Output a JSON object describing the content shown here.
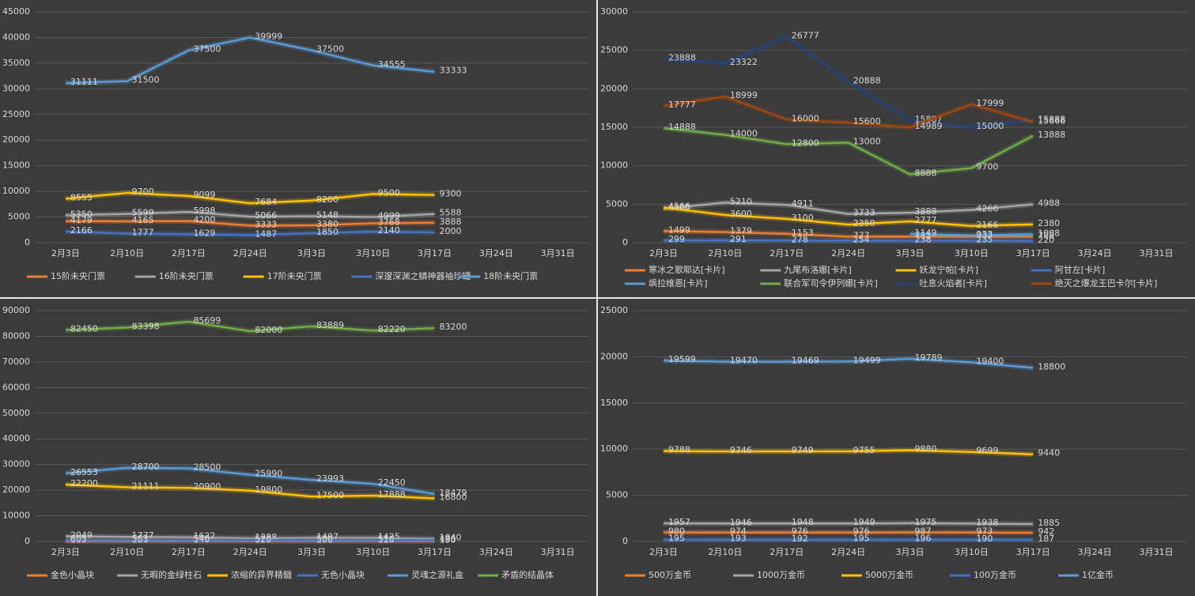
{
  "chart_data": [
    {
      "type": "line",
      "categories": [
        "2月3日",
        "2月10日",
        "2月17日",
        "2月24日",
        "3月3日",
        "3月10日",
        "3月17日",
        "3月24日",
        "3月31日"
      ],
      "ylim": [
        0,
        45000
      ],
      "yticks": [
        0,
        5000,
        10000,
        15000,
        20000,
        25000,
        30000,
        35000,
        40000,
        45000
      ],
      "grid": true,
      "legend": "bottom",
      "series": [
        {
          "name": "15阶未央门票",
          "color": "#ed7d31",
          "values": [
            4179,
            4165,
            4200,
            3333,
            3380,
            3768,
            3888,
            null,
            null
          ]
        },
        {
          "name": "16阶未央门票",
          "color": "#a5a5a5",
          "values": [
            5350,
            5599,
            5998,
            5066,
            5148,
            4999,
            5588,
            null,
            null
          ]
        },
        {
          "name": "17阶未央门票",
          "color": "#ffc000",
          "values": [
            8555,
            9700,
            9099,
            7684,
            8200,
            9500,
            9300,
            null,
            null
          ]
        },
        {
          "name": "深邃深渊之鳞神器袖珍罐",
          "color": "#4472c4",
          "values": [
            2166,
            1777,
            1629,
            1487,
            1850,
            2140,
            2000,
            null,
            null
          ]
        },
        {
          "name": "18阶未央门票",
          "color": "#5b9bd5",
          "values": [
            31111,
            31500,
            37500,
            39999,
            37500,
            34555,
            33333,
            null,
            null
          ]
        }
      ]
    },
    {
      "type": "line",
      "categories": [
        "2月3日",
        "2月10日",
        "2月17日",
        "2月24日",
        "3月3日",
        "3月10日",
        "3月17日",
        "3月24日",
        "3月31日"
      ],
      "ylim": [
        0,
        30000
      ],
      "yticks": [
        0,
        5000,
        10000,
        15000,
        20000,
        25000,
        30000
      ],
      "grid": true,
      "legend": "bottom",
      "series": [
        {
          "name": "寒冰之歌耶达[卡片]",
          "color": "#ed7d31",
          "values": [
            1499,
            1379,
            1153,
            777,
            781,
            777,
            788,
            null,
            null
          ]
        },
        {
          "name": "九尾布洛娜[卡片]",
          "color": "#a5a5a5",
          "values": [
            4400,
            5210,
            4911,
            3733,
            3888,
            4266,
            4988,
            null,
            null
          ]
        },
        {
          "name": "妖龙宁帕[卡片]",
          "color": "#ffc000",
          "values": [
            4566,
            3600,
            3100,
            2350,
            2777,
            2166,
            2380,
            null,
            null
          ]
        },
        {
          "name": "阿甘左[卡片]",
          "color": "#4472c4",
          "values": [
            299,
            291,
            278,
            254,
            238,
            235,
            220,
            null,
            null
          ]
        },
        {
          "name": "飒拉维恩[卡片]",
          "color": "#5b9bd5",
          "values": [
            null,
            null,
            null,
            null,
            1149,
            933,
            1088,
            null,
            null
          ]
        },
        {
          "name": "联合军司令伊列娜[卡片]",
          "color": "#70ad47",
          "values": [
            14888,
            14000,
            12800,
            13000,
            8888,
            9700,
            13888,
            null,
            null
          ]
        },
        {
          "name": "吐息火焰者[卡片]",
          "color": "#264478",
          "values": [
            23888,
            23322,
            26777,
            20888,
            15887,
            15000,
            15888,
            null,
            null
          ]
        },
        {
          "name": "绝灭之爆龙王巴卡尔[卡片]",
          "color": "#9e480e",
          "values": [
            17777,
            18999,
            16000,
            15600,
            14989,
            17999,
            15666,
            null,
            null
          ]
        }
      ]
    },
    {
      "type": "line",
      "categories": [
        "2月3日",
        "2月10日",
        "2月17日",
        "2月24日",
        "3月3日",
        "3月10日",
        "3月17日",
        "3月24日",
        "3月31日"
      ],
      "ylim": [
        0,
        90000
      ],
      "yticks": [
        0,
        10000,
        20000,
        30000,
        40000,
        50000,
        60000,
        70000,
        80000,
        90000
      ],
      "grid": true,
      "legend": "bottom",
      "series": [
        {
          "name": "金色小晶块",
          "color": "#ed7d31",
          "values": [
            115,
            126,
            140,
            133,
            130,
            128,
            130,
            null,
            null
          ]
        },
        {
          "name": "无暇的金绿柱石",
          "color": "#a5a5a5",
          "values": [
            2049,
            1777,
            1622,
            1288,
            1407,
            1425,
            1040,
            null,
            null
          ]
        },
        {
          "name": "浓缩的异界精髓",
          "color": "#ffc000",
          "values": [
            22200,
            21111,
            20900,
            19800,
            17500,
            17888,
            16800,
            null,
            null
          ]
        },
        {
          "name": "无色小晶块",
          "color": "#4472c4",
          "values": [
            605,
            563,
            540,
            520,
            500,
            510,
            480,
            null,
            null
          ]
        },
        {
          "name": "灵魂之源礼盒",
          "color": "#5b9bd5",
          "values": [
            26553,
            28700,
            28500,
            25990,
            23993,
            22450,
            18479,
            null,
            null
          ]
        },
        {
          "name": "矛盾的结晶体",
          "color": "#70ad47",
          "values": [
            82450,
            83398,
            85699,
            82000,
            83889,
            82220,
            83200,
            null,
            null
          ]
        }
      ]
    },
    {
      "type": "line",
      "categories": [
        "2月3日",
        "2月10日",
        "2月17日",
        "2月24日",
        "3月3日",
        "3月10日",
        "3月17日",
        "3月24日",
        "3月31日"
      ],
      "ylim": [
        0,
        25000
      ],
      "yticks": [
        0,
        5000,
        10000,
        15000,
        20000,
        25000
      ],
      "grid": true,
      "legend": "bottom",
      "series": [
        {
          "name": "500万金币",
          "color": "#ed7d31",
          "values": [
            980,
            974,
            976,
            976,
            987,
            973,
            942,
            null,
            null
          ]
        },
        {
          "name": "1000万金币",
          "color": "#a5a5a5",
          "values": [
            1957,
            1946,
            1948,
            1949,
            1975,
            1938,
            1885,
            null,
            null
          ]
        },
        {
          "name": "5000万金币",
          "color": "#ffc000",
          "values": [
            9788,
            9746,
            9749,
            9755,
            9880,
            9699,
            9440,
            null,
            null
          ]
        },
        {
          "name": "100万金币",
          "color": "#4472c4",
          "values": [
            195,
            193,
            192,
            195,
            196,
            190,
            187,
            null,
            null
          ]
        },
        {
          "name": "1亿金币",
          "color": "#5b9bd5",
          "values": [
            19599,
            19470,
            19469,
            19499,
            19789,
            19400,
            18800,
            null,
            null
          ]
        }
      ]
    }
  ]
}
